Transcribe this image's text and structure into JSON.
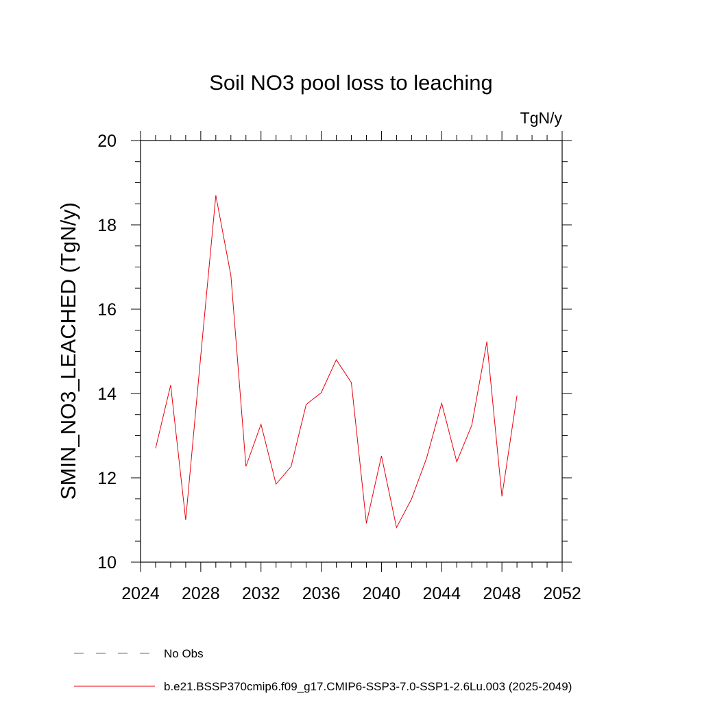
{
  "chart_data": {
    "type": "line",
    "title": "Soil NO3 pool loss to leaching",
    "units_label": "TgN/y",
    "xlabel": "",
    "ylabel": "SMIN_NO3_LEACHED  (TgN/y)",
    "xlim": [
      2024,
      2052
    ],
    "ylim": [
      10,
      20
    ],
    "x_major_ticks": [
      2024,
      2028,
      2032,
      2036,
      2040,
      2044,
      2048,
      2052
    ],
    "x_tick_labels": [
      "2024",
      "2028",
      "2032",
      "2036",
      "2040",
      "2044",
      "2048",
      "2052"
    ],
    "x_minor_ticks": [
      2025,
      2026,
      2027,
      2029,
      2030,
      2031,
      2033,
      2034,
      2035,
      2037,
      2038,
      2039,
      2041,
      2042,
      2043,
      2045,
      2046,
      2047,
      2049,
      2050,
      2051
    ],
    "y_major_ticks": [
      10,
      12,
      14,
      16,
      18,
      20
    ],
    "y_tick_labels": [
      "10",
      "12",
      "14",
      "16",
      "18",
      "20"
    ],
    "y_minor_ticks": [
      10.5,
      11,
      11.5,
      12.5,
      13,
      13.5,
      14.5,
      15,
      15.5,
      16.5,
      17,
      17.5,
      18.5,
      19,
      19.5
    ],
    "grid": false,
    "legend_position": "bottom",
    "series": [
      {
        "name": "b.e21.BSSP370cmip6.f09_g17.CMIP6-SSP3-7.0-SSP1-2.6Lu.003 (2025-2049)",
        "color": "#e8000b",
        "line_style": "solid",
        "x": [
          2025,
          2026,
          2027,
          2028,
          2029,
          2030,
          2031,
          2032,
          2033,
          2034,
          2035,
          2036,
          2037,
          2038,
          2039,
          2040,
          2041,
          2042,
          2043,
          2044,
          2045,
          2046,
          2047,
          2048,
          2049
        ],
        "y": [
          12.7,
          14.2,
          11.0,
          14.9,
          18.7,
          16.8,
          12.27,
          13.27,
          11.85,
          12.27,
          13.74,
          14.02,
          14.8,
          14.26,
          10.92,
          12.52,
          10.82,
          11.5,
          12.47,
          13.77,
          12.38,
          13.25,
          15.23,
          11.56,
          13.95
        ]
      }
    ],
    "legend": [
      {
        "label": "No Obs",
        "color": "#6b5fa8",
        "line_style": "dashed"
      },
      {
        "label": "b.e21.BSSP370cmip6.f09_g17.CMIP6-SSP3-7.0-SSP1-2.6Lu.003 (2025-2049)",
        "color": "#e8000b",
        "line_style": "solid"
      }
    ]
  }
}
